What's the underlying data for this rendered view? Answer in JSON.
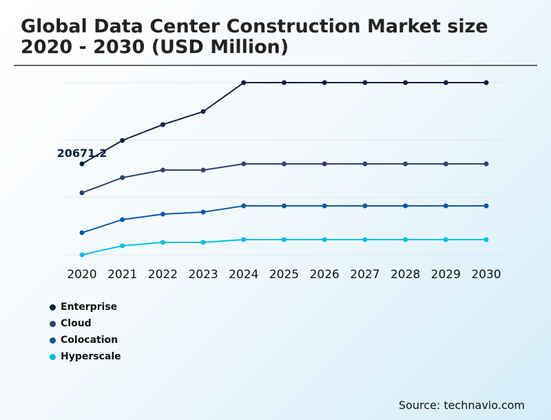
{
  "chart_data": {
    "type": "line",
    "title": "Global Data Center Construction Market size 2020 - 2030 (USD Million)",
    "categories": [
      "2020",
      "2021",
      "2022",
      "2023",
      "2024",
      "2025",
      "2026",
      "2027",
      "2028",
      "2029",
      "2030"
    ],
    "series": [
      {
        "name": "Enterprise",
        "color": "#0b1f45",
        "values": [
          20671.2,
          26000,
          29600,
          32570,
          39150,
          39150,
          39150,
          39150,
          39150,
          39150,
          39150
        ]
      },
      {
        "name": "Cloud",
        "color": "#2e4272",
        "values": [
          14090,
          17540,
          19260,
          19260,
          20670,
          20670,
          20670,
          20670,
          20670,
          20670,
          20670
        ]
      },
      {
        "name": "Colocation",
        "color": "#0e57a6",
        "values": [
          5010,
          7990,
          9240,
          9710,
          11120,
          11120,
          11120,
          11120,
          11120,
          11120,
          11120
        ]
      },
      {
        "name": "Hyperscale",
        "color": "#00c0e6",
        "values": [
          0,
          2040,
          2820,
          2820,
          3450,
          3450,
          3450,
          3450,
          3450,
          3450,
          3450
        ]
      }
    ],
    "data_label": {
      "series": "Enterprise",
      "category": "2020",
      "text": "20671.2"
    },
    "ylim": [
      0,
      39150
    ],
    "y_ticks_shown": false,
    "grid": true,
    "legend_position": "bottom-left"
  },
  "source": "Source: technavio.com"
}
